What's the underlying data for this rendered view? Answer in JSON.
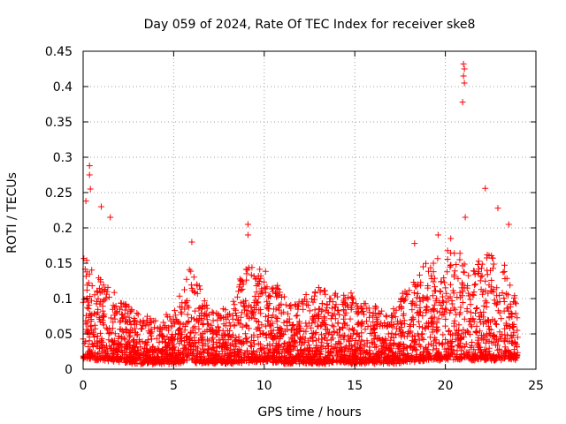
{
  "chart_data": {
    "type": "scatter",
    "title": "Day 059 of 2024, Rate Of TEC Index for receiver ske8",
    "xlabel": "GPS time / hours",
    "ylabel": "ROTI / TECUs",
    "xlim": [
      0,
      25
    ],
    "ylim": [
      0,
      0.45
    ],
    "xticks": [
      "0",
      "5",
      "10",
      "15",
      "20",
      "25"
    ],
    "yticks": [
      "0",
      "0.05",
      "0.1",
      "0.15",
      "0.2",
      "0.25",
      "0.3",
      "0.35",
      "0.4",
      "0.45"
    ],
    "grid": true,
    "marker": "+",
    "color": "#ff0000",
    "series": [
      {
        "name": "ROTI",
        "notable_points": [
          {
            "x": 0.35,
            "y": 0.288
          },
          {
            "x": 0.35,
            "y": 0.275
          },
          {
            "x": 0.4,
            "y": 0.255
          },
          {
            "x": 0.15,
            "y": 0.238
          },
          {
            "x": 1.0,
            "y": 0.23
          },
          {
            "x": 1.5,
            "y": 0.215
          },
          {
            "x": 6.0,
            "y": 0.18
          },
          {
            "x": 9.1,
            "y": 0.205
          },
          {
            "x": 9.1,
            "y": 0.19
          },
          {
            "x": 18.3,
            "y": 0.178
          },
          {
            "x": 19.6,
            "y": 0.19
          },
          {
            "x": 20.3,
            "y": 0.185
          },
          {
            "x": 21.0,
            "y": 0.432
          },
          {
            "x": 21.05,
            "y": 0.425
          },
          {
            "x": 21.0,
            "y": 0.415
          },
          {
            "x": 21.05,
            "y": 0.405
          },
          {
            "x": 20.95,
            "y": 0.378
          },
          {
            "x": 21.1,
            "y": 0.215
          },
          {
            "x": 22.2,
            "y": 0.256
          },
          {
            "x": 22.9,
            "y": 0.228
          },
          {
            "x": 23.5,
            "y": 0.205
          }
        ],
        "hourly_envelope": [
          {
            "hour": 0,
            "base": 0.015,
            "peak": 0.16
          },
          {
            "hour": 1,
            "base": 0.015,
            "peak": 0.13
          },
          {
            "hour": 2,
            "base": 0.012,
            "peak": 0.1
          },
          {
            "hour": 3,
            "base": 0.01,
            "peak": 0.08
          },
          {
            "hour": 4,
            "base": 0.01,
            "peak": 0.07
          },
          {
            "hour": 5,
            "base": 0.01,
            "peak": 0.08
          },
          {
            "hour": 6,
            "base": 0.012,
            "peak": 0.15
          },
          {
            "hour": 7,
            "base": 0.01,
            "peak": 0.08
          },
          {
            "hour": 8,
            "base": 0.01,
            "peak": 0.09
          },
          {
            "hour": 9,
            "base": 0.012,
            "peak": 0.15
          },
          {
            "hour": 10,
            "base": 0.012,
            "peak": 0.14
          },
          {
            "hour": 11,
            "base": 0.01,
            "peak": 0.11
          },
          {
            "hour": 12,
            "base": 0.01,
            "peak": 0.1
          },
          {
            "hour": 13,
            "base": 0.01,
            "peak": 0.12
          },
          {
            "hour": 14,
            "base": 0.01,
            "peak": 0.11
          },
          {
            "hour": 15,
            "base": 0.01,
            "peak": 0.11
          },
          {
            "hour": 16,
            "base": 0.01,
            "peak": 0.09
          },
          {
            "hour": 17,
            "base": 0.01,
            "peak": 0.08
          },
          {
            "hour": 18,
            "base": 0.012,
            "peak": 0.12
          },
          {
            "hour": 19,
            "base": 0.015,
            "peak": 0.15
          },
          {
            "hour": 20,
            "base": 0.015,
            "peak": 0.17
          },
          {
            "hour": 21,
            "base": 0.015,
            "peak": 0.16
          },
          {
            "hour": 22,
            "base": 0.015,
            "peak": 0.16
          },
          {
            "hour": 23,
            "base": 0.015,
            "peak": 0.17
          },
          {
            "hour": 24,
            "base": 0.015,
            "peak": 0.09
          }
        ]
      }
    ]
  }
}
